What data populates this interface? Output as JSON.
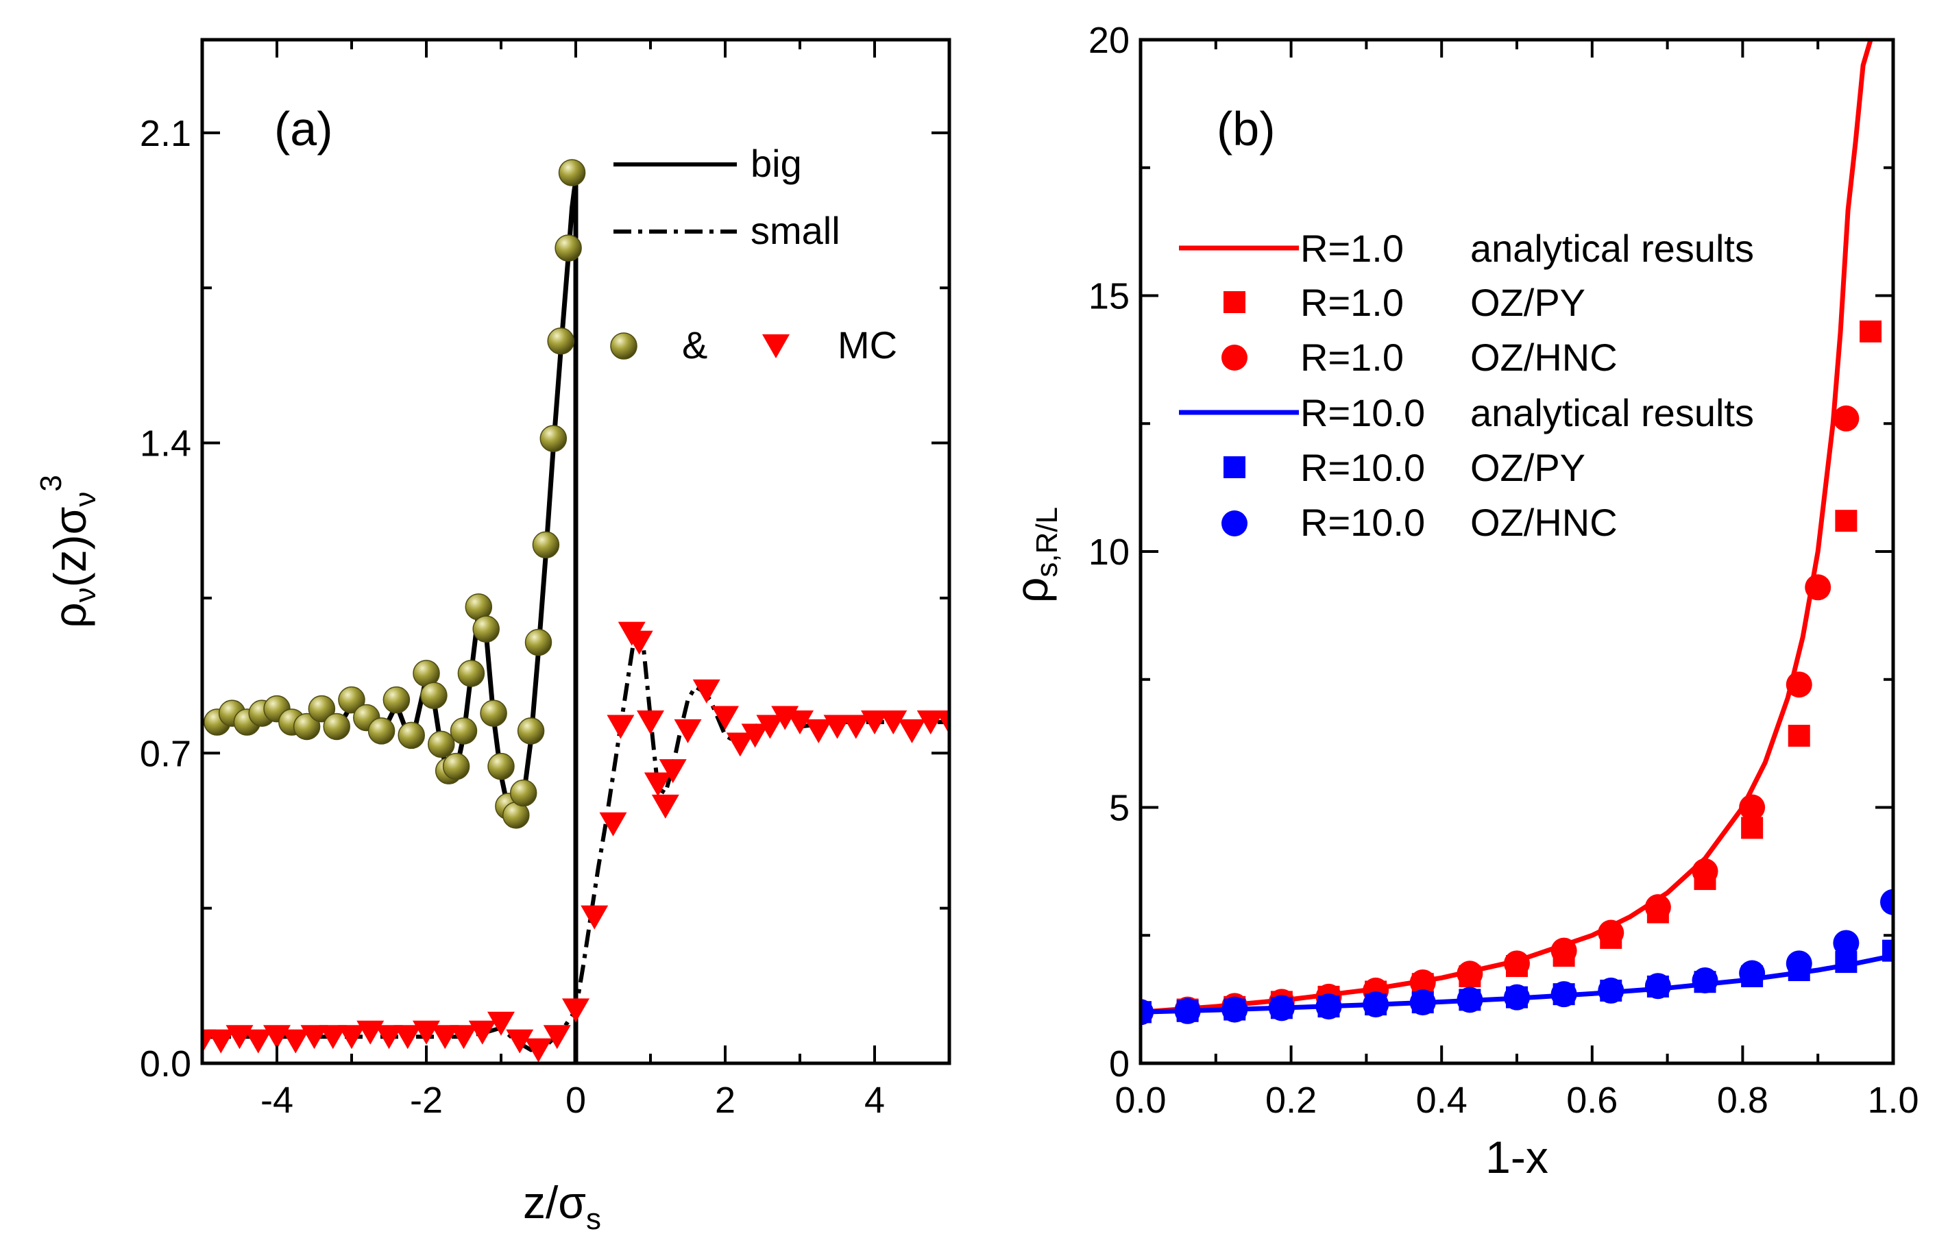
{
  "chart_data": [
    {
      "panel_label": "(a)",
      "type": "line",
      "xlabel": "z/σs",
      "xlabel_main": "z/σ",
      "xlabel_sub": "s",
      "ylabel": "ρν(z)σν³",
      "ylabel_parts": {
        "rho": "ρ",
        "sub1": "ν",
        "mid": "(z)σ",
        "sub2": "ν",
        "sup": "3"
      },
      "xlim": [
        -5,
        5
      ],
      "ylim": [
        0,
        2.31
      ],
      "x_ticks": [
        -4,
        -2,
        0,
        2,
        4
      ],
      "x_tick_labels": [
        "-4",
        "-2",
        "0",
        "2",
        "4"
      ],
      "y_ticks": [
        0.0,
        0.7,
        1.4,
        2.1
      ],
      "y_tick_labels": [
        "0.0",
        "0.7",
        "1.4",
        "2.1"
      ],
      "legend": [
        {
          "label": "big",
          "style": "solid"
        },
        {
          "label": "small",
          "style": "dash-dot"
        },
        {
          "label": "MC",
          "connector": "&",
          "markers": [
            "olive-sphere",
            "red-triangle-down"
          ]
        }
      ],
      "series": [
        {
          "name": "big",
          "style": "solid",
          "color": "#000000",
          "x": [
            -5.0,
            -4.8,
            -4.6,
            -4.4,
            -4.2,
            -4.0,
            -3.8,
            -3.6,
            -3.4,
            -3.2,
            -3.0,
            -2.8,
            -2.6,
            -2.4,
            -2.2,
            -2.0,
            -1.9,
            -1.8,
            -1.7,
            -1.6,
            -1.5,
            -1.4,
            -1.3,
            -1.2,
            -1.1,
            -1.0,
            -0.9,
            -0.8,
            -0.7,
            -0.6,
            -0.5,
            -0.4,
            -0.3,
            -0.2,
            -0.1,
            -0.05,
            -0.02,
            0.0,
            0.0
          ],
          "values": [
            0.77,
            0.76,
            0.78,
            0.76,
            0.78,
            0.79,
            0.76,
            0.75,
            0.79,
            0.75,
            0.81,
            0.77,
            0.74,
            0.81,
            0.72,
            0.87,
            0.82,
            0.71,
            0.65,
            0.66,
            0.74,
            0.88,
            1.02,
            0.97,
            0.78,
            0.65,
            0.57,
            0.55,
            0.6,
            0.73,
            0.93,
            1.15,
            1.39,
            1.61,
            1.82,
            1.93,
            1.97,
            1.99,
            0.0
          ]
        },
        {
          "name": "small",
          "style": "dash-dot",
          "color": "#000000",
          "x": [
            -5.0,
            -4.5,
            -4.0,
            -3.5,
            -3.0,
            -2.5,
            -2.0,
            -1.5,
            -1.2,
            -1.0,
            -0.8,
            -0.6,
            -0.4,
            -0.2,
            0.0,
            0.1,
            0.2,
            0.3,
            0.4,
            0.5,
            0.6,
            0.7,
            0.8,
            0.9,
            1.0,
            1.1,
            1.2,
            1.3,
            1.4,
            1.5,
            1.6,
            1.7,
            1.8,
            1.9,
            2.0,
            2.2,
            2.4,
            2.6,
            2.8,
            3.0,
            3.5,
            4.0,
            4.5,
            5.0
          ],
          "values": [
            0.06,
            0.06,
            0.06,
            0.06,
            0.06,
            0.06,
            0.06,
            0.06,
            0.07,
            0.08,
            0.05,
            0.03,
            0.04,
            0.07,
            0.12,
            0.22,
            0.33,
            0.44,
            0.54,
            0.65,
            0.76,
            0.87,
            0.98,
            0.95,
            0.78,
            0.62,
            0.61,
            0.67,
            0.75,
            0.82,
            0.85,
            0.84,
            0.82,
            0.78,
            0.74,
            0.72,
            0.76,
            0.78,
            0.78,
            0.76,
            0.77,
            0.77,
            0.77,
            0.77
          ]
        },
        {
          "name": "MC big",
          "style": "marker",
          "marker": "olive-sphere",
          "color": "#8a8524",
          "x": [
            -4.8,
            -4.6,
            -4.4,
            -4.2,
            -4.0,
            -3.8,
            -3.6,
            -3.4,
            -3.2,
            -3.0,
            -2.8,
            -2.6,
            -2.4,
            -2.2,
            -2.0,
            -1.9,
            -1.8,
            -1.7,
            -1.6,
            -1.5,
            -1.4,
            -1.3,
            -1.2,
            -1.1,
            -1.0,
            -0.9,
            -0.8,
            -0.7,
            -0.6,
            -0.5,
            -0.4,
            -0.3,
            -0.2,
            -0.1,
            -0.05
          ],
          "values": [
            0.77,
            0.79,
            0.77,
            0.79,
            0.8,
            0.77,
            0.76,
            0.8,
            0.76,
            0.82,
            0.78,
            0.75,
            0.82,
            0.74,
            0.88,
            0.83,
            0.72,
            0.66,
            0.67,
            0.75,
            0.88,
            1.03,
            0.98,
            0.79,
            0.67,
            0.58,
            0.56,
            0.61,
            0.75,
            0.95,
            1.17,
            1.41,
            1.63,
            1.84,
            2.01
          ]
        },
        {
          "name": "MC small",
          "style": "marker",
          "marker": "red-triangle-down",
          "color": "#ff0000",
          "x": [
            -5.0,
            -4.75,
            -4.5,
            -4.25,
            -4.0,
            -3.75,
            -3.5,
            -3.25,
            -3.0,
            -2.75,
            -2.5,
            -2.25,
            -2.0,
            -1.75,
            -1.5,
            -1.25,
            -1.0,
            -0.75,
            -0.5,
            -0.25,
            0.0,
            0.25,
            0.5,
            0.6,
            0.75,
            0.85,
            1.0,
            1.1,
            1.2,
            1.3,
            1.5,
            1.75,
            2.0,
            2.2,
            2.4,
            2.6,
            2.8,
            3.0,
            3.25,
            3.5,
            3.75,
            4.0,
            4.25,
            4.5,
            4.75,
            5.0
          ],
          "values": [
            0.05,
            0.05,
            0.06,
            0.05,
            0.06,
            0.05,
            0.06,
            0.06,
            0.06,
            0.07,
            0.06,
            0.06,
            0.07,
            0.06,
            0.06,
            0.07,
            0.09,
            0.05,
            0.03,
            0.06,
            0.12,
            0.33,
            0.54,
            0.76,
            0.97,
            0.95,
            0.77,
            0.63,
            0.58,
            0.66,
            0.75,
            0.84,
            0.78,
            0.72,
            0.74,
            0.76,
            0.78,
            0.77,
            0.75,
            0.76,
            0.76,
            0.77,
            0.77,
            0.75,
            0.77,
            0.77
          ]
        }
      ]
    },
    {
      "panel_label": "(b)",
      "type": "line",
      "xlabel": "1-x",
      "ylabel": "ρs,R/L",
      "ylabel_parts": {
        "rho": "ρ",
        "sub": "s,R/L"
      },
      "xlim": [
        0,
        1.0
      ],
      "ylim": [
        0,
        20
      ],
      "x_ticks": [
        0.0,
        0.2,
        0.4,
        0.6,
        0.8,
        1.0
      ],
      "x_tick_labels": [
        "0.0",
        "0.2",
        "0.4",
        "0.6",
        "0.8",
        "1.0"
      ],
      "y_ticks": [
        0,
        5,
        10,
        15,
        20
      ],
      "y_tick_labels": [
        "0",
        "5",
        "10",
        "15",
        "20"
      ],
      "legend": [
        {
          "label": "R=1.0",
          "desc": "analytical results",
          "style": "line",
          "color": "#ff0000"
        },
        {
          "label": "R=1.0",
          "desc": "OZ/PY",
          "style": "square",
          "color": "#ff0000"
        },
        {
          "label": "R=1.0",
          "desc": "OZ/HNC",
          "style": "circle",
          "color": "#ff0000"
        },
        {
          "label": "R=10.0",
          "desc": "analytical results",
          "style": "line",
          "color": "#0000ff"
        },
        {
          "label": "R=10.0",
          "desc": "OZ/PY",
          "style": "square",
          "color": "#0000ff"
        },
        {
          "label": "R=10.0",
          "desc": "OZ/HNC",
          "style": "circle",
          "color": "#0000ff"
        }
      ],
      "series": [
        {
          "name": "R=1.0 analytical results",
          "style": "line",
          "color": "#ff0000",
          "x": [
            0.0,
            0.1,
            0.2,
            0.3,
            0.4,
            0.5,
            0.6,
            0.65,
            0.7,
            0.75,
            0.8,
            0.83,
            0.86,
            0.88,
            0.9,
            0.92,
            0.93,
            0.94,
            0.95,
            0.96,
            0.97
          ],
          "values": [
            1.0,
            1.11,
            1.25,
            1.43,
            1.67,
            2.0,
            2.5,
            2.86,
            3.33,
            4.0,
            5.0,
            5.88,
            7.14,
            8.33,
            10.0,
            12.5,
            14.29,
            16.67,
            18.0,
            19.5,
            20.0
          ]
        },
        {
          "name": "R=1.0 OZ/PY",
          "style": "square",
          "color": "#ff0000",
          "x": [
            0.0,
            0.0625,
            0.125,
            0.1875,
            0.25,
            0.3125,
            0.375,
            0.4375,
            0.5,
            0.5625,
            0.625,
            0.6875,
            0.75,
            0.8125,
            0.875,
            0.9375,
            0.97
          ],
          "values": [
            1.0,
            1.05,
            1.1,
            1.2,
            1.3,
            1.4,
            1.55,
            1.7,
            1.9,
            2.1,
            2.45,
            2.95,
            3.6,
            4.6,
            6.4,
            10.6,
            14.3
          ]
        },
        {
          "name": "R=1.0 OZ/HNC",
          "style": "circle",
          "color": "#ff0000",
          "x": [
            0.0,
            0.0625,
            0.125,
            0.1875,
            0.25,
            0.3125,
            0.375,
            0.4375,
            0.5,
            0.5625,
            0.625,
            0.6875,
            0.75,
            0.8125,
            0.875,
            0.9,
            0.9375
          ],
          "values": [
            1.0,
            1.05,
            1.12,
            1.2,
            1.3,
            1.42,
            1.58,
            1.75,
            1.95,
            2.2,
            2.55,
            3.05,
            3.75,
            5.0,
            7.4,
            9.3,
            12.6
          ]
        },
        {
          "name": "R=10.0 analytical results",
          "style": "line",
          "color": "#0000ff",
          "x": [
            0.0,
            0.1,
            0.2,
            0.3,
            0.4,
            0.5,
            0.6,
            0.7,
            0.8,
            0.9,
            0.95,
            1.0
          ],
          "values": [
            1.0,
            1.04,
            1.09,
            1.14,
            1.2,
            1.27,
            1.36,
            1.47,
            1.62,
            1.82,
            1.95,
            2.1
          ]
        },
        {
          "name": "R=10.0 OZ/PY",
          "style": "square",
          "color": "#0000ff",
          "x": [
            0.0,
            0.0625,
            0.125,
            0.1875,
            0.25,
            0.3125,
            0.375,
            0.4375,
            0.5,
            0.5625,
            0.625,
            0.6875,
            0.75,
            0.8125,
            0.875,
            0.9375,
            1.0
          ],
          "values": [
            1.0,
            1.02,
            1.05,
            1.08,
            1.11,
            1.15,
            1.19,
            1.24,
            1.29,
            1.35,
            1.42,
            1.5,
            1.59,
            1.7,
            1.82,
            1.98,
            2.2
          ]
        },
        {
          "name": "R=10.0 OZ/HNC",
          "style": "circle",
          "color": "#0000ff",
          "x": [
            0.0,
            0.0625,
            0.125,
            0.1875,
            0.25,
            0.3125,
            0.375,
            0.4375,
            0.5,
            0.5625,
            0.625,
            0.6875,
            0.75,
            0.8125,
            0.875,
            0.9375,
            1.0
          ],
          "values": [
            1.0,
            1.02,
            1.05,
            1.08,
            1.11,
            1.15,
            1.19,
            1.24,
            1.29,
            1.35,
            1.42,
            1.51,
            1.62,
            1.76,
            1.95,
            2.35,
            3.15
          ]
        }
      ]
    }
  ]
}
